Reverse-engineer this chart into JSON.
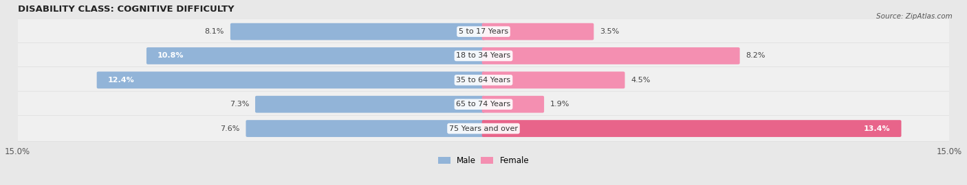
{
  "title": "DISABILITY CLASS: COGNITIVE DIFFICULTY",
  "source": "Source: ZipAtlas.com",
  "categories": [
    "5 to 17 Years",
    "18 to 34 Years",
    "35 to 64 Years",
    "65 to 74 Years",
    "75 Years and over"
  ],
  "male_values": [
    8.1,
    10.8,
    12.4,
    7.3,
    7.6
  ],
  "female_values": [
    3.5,
    8.2,
    4.5,
    1.9,
    13.4
  ],
  "x_max": 15.0,
  "male_color": "#92b4d8",
  "female_color": "#f48fb1",
  "male_color_dark": "#6a9ac4",
  "female_color_dark": "#e8648a",
  "male_label": "Male",
  "female_label": "Female",
  "bar_height": 0.6,
  "row_bg_color": "#e8e8e8",
  "row_inner_color": "#f5f5f5",
  "title_fontsize": 9.5,
  "label_fontsize": 8.0,
  "tick_fontsize": 8.5
}
